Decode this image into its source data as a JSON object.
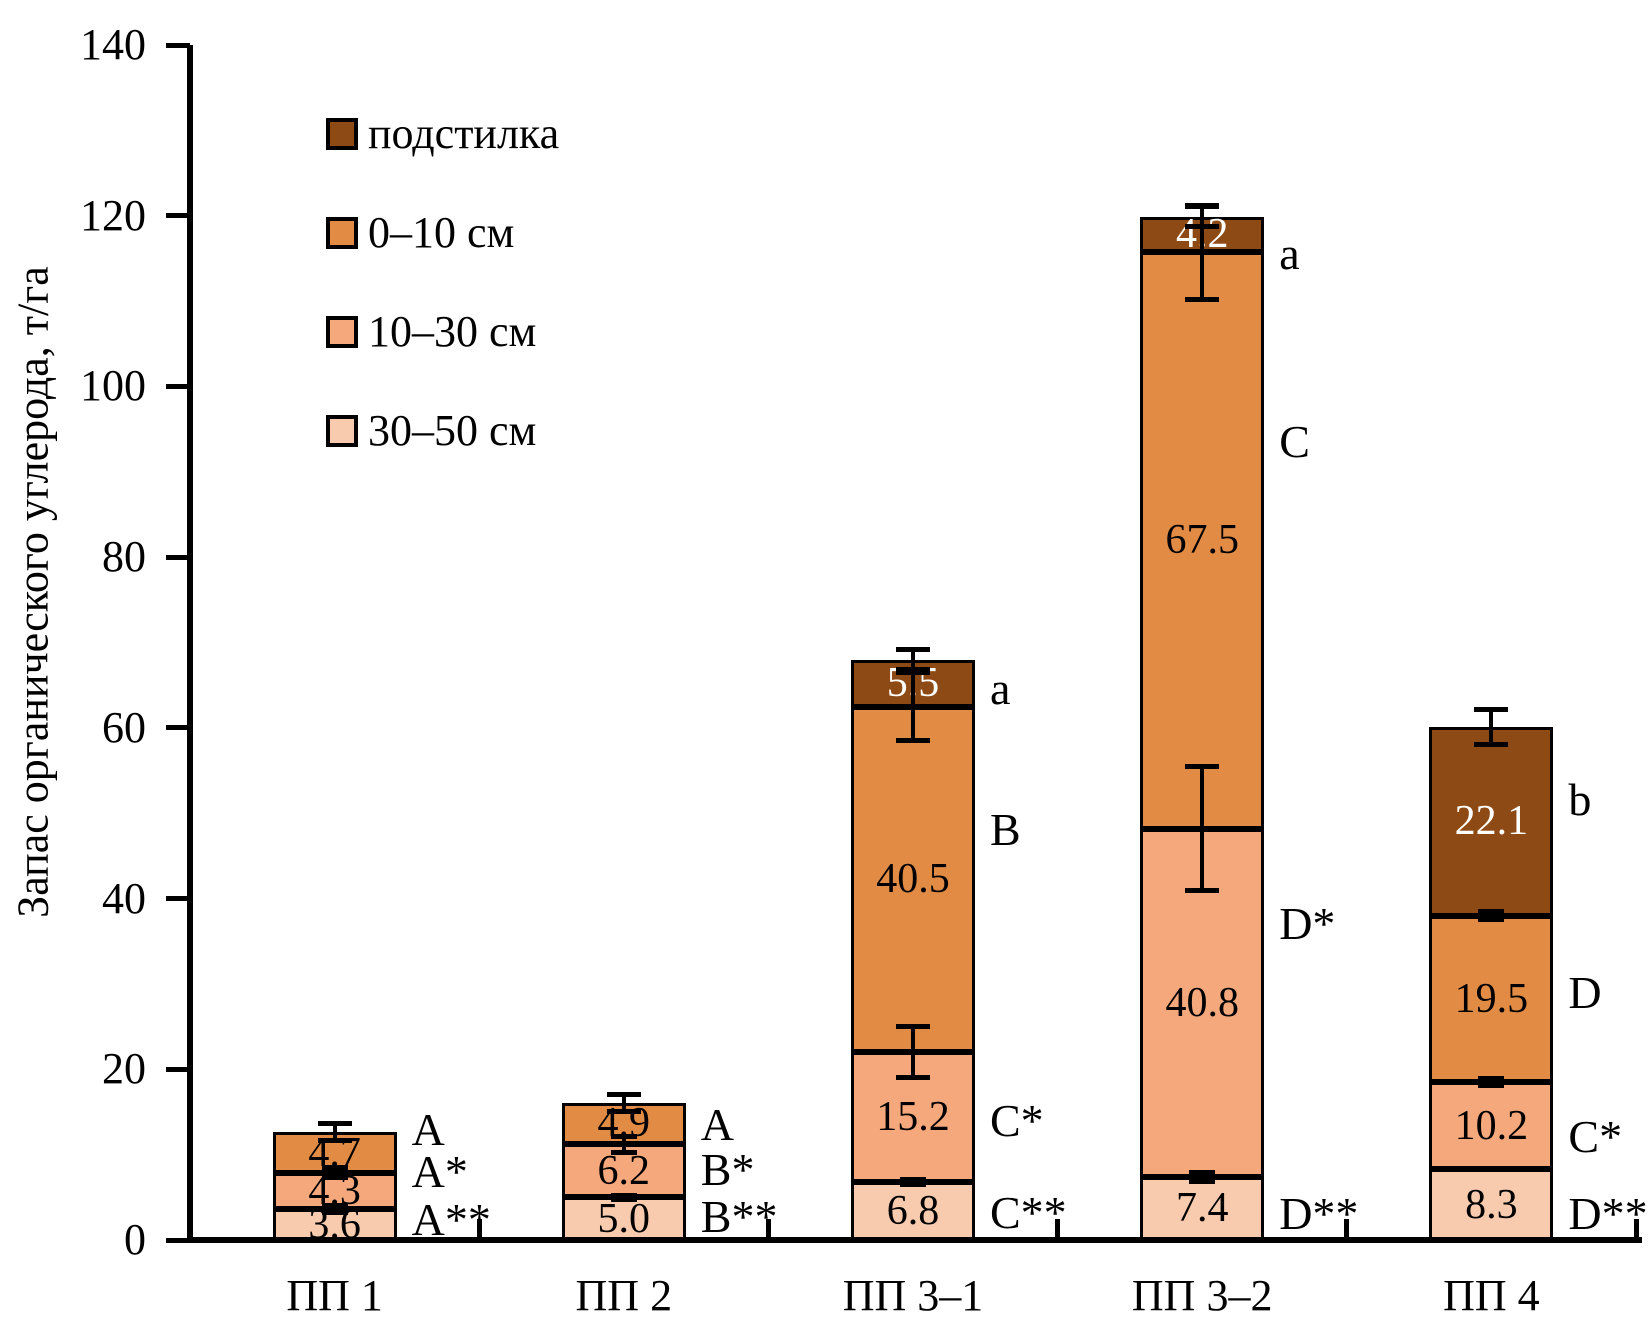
{
  "chart_data": {
    "type": "bar",
    "stacked": true,
    "title": "",
    "xlabel": "",
    "ylabel": "Запас органического углерода, т/га",
    "ylim": [
      0,
      140
    ],
    "yticks": [
      0,
      20,
      40,
      60,
      80,
      100,
      120,
      140
    ],
    "grid": false,
    "legend_position": "top-left",
    "categories": [
      "ПП 1",
      "ПП 2",
      "ПП 3–1",
      "ПП 3–2",
      "ПП 4"
    ],
    "series": [
      {
        "name": "30–50 см",
        "color": "#F8CBAE",
        "label_color": "#000000",
        "values": [
          3.6,
          5.0,
          6.8,
          7.4,
          8.3
        ]
      },
      {
        "name": "10–30 см",
        "color": "#F5A87C",
        "label_color": "#000000",
        "values": [
          4.3,
          6.2,
          15.2,
          40.8,
          10.2
        ]
      },
      {
        "name": "0–10 см",
        "color": "#E18B45",
        "label_color": "#000000",
        "values": [
          4.7,
          4.9,
          40.5,
          67.5,
          19.5
        ]
      },
      {
        "name": "подстилка",
        "color": "#8E4A14",
        "label_color": "#FFFFFF",
        "values": [
          null,
          null,
          5.5,
          4.2,
          22.1
        ]
      }
    ],
    "legend_items": [
      {
        "label": "подстилка",
        "color": "#8E4A14"
      },
      {
        "label": "0–10 см",
        "color": "#E18B45"
      },
      {
        "label": "10–30 см",
        "color": "#F5A87C"
      },
      {
        "label": "30–50 см",
        "color": "#F8CBAE"
      }
    ],
    "totals": [
      12.6,
      16.1,
      68.0,
      119.9,
      60.1
    ],
    "error_bars": [
      [
        {
          "at": 3.6,
          "pm": 0.4
        },
        {
          "at": 7.9,
          "pm": 0.6
        },
        {
          "at": 12.6,
          "pm": 1.0
        }
      ],
      [
        {
          "at": 5.0,
          "pm": 0.2
        },
        {
          "at": 11.2,
          "pm": 0.9
        },
        {
          "at": 16.1,
          "pm": 1.0
        }
      ],
      [
        {
          "at": 6.8,
          "pm": 0.3
        },
        {
          "at": 22.0,
          "pm": 3.0
        },
        {
          "at": 62.5,
          "pm": 4.0
        },
        {
          "at": 68.0,
          "pm": 1.2
        }
      ],
      [
        {
          "at": 7.4,
          "pm": 0.5
        },
        {
          "at": 48.2,
          "pm": 7.3
        },
        {
          "at": 115.7,
          "pm": 5.5
        },
        {
          "at": 119.9,
          "pm": 1.2
        }
      ],
      [
        {
          "at": 18.5,
          "pm": 0.4
        },
        {
          "at": 38.0,
          "pm": 0.5
        },
        {
          "at": 60.1,
          "pm": 2.0
        }
      ]
    ],
    "significance_labels": [
      [
        {
          "text": "A",
          "at": 12.9
        },
        {
          "text": "A*",
          "at": 8.0
        },
        {
          "text": "A**",
          "at": 2.4
        }
      ],
      [
        {
          "text": "A",
          "at": 13.5
        },
        {
          "text": "B*",
          "at": 8.2
        },
        {
          "text": "B**",
          "at": 2.7
        }
      ],
      [
        {
          "text": "a",
          "at": 64.6
        },
        {
          "text": "B",
          "at": 48.0
        },
        {
          "text": "C*",
          "at": 14.0
        },
        {
          "text": "C**",
          "at": 3.2
        }
      ],
      [
        {
          "text": "a",
          "at": 115.5
        },
        {
          "text": "C",
          "at": 93.5
        },
        {
          "text": "D*",
          "at": 37.0
        },
        {
          "text": "D**",
          "at": 3.0
        }
      ],
      [
        {
          "text": "b",
          "at": 51.5
        },
        {
          "text": "D",
          "at": 28.9
        },
        {
          "text": "C*",
          "at": 12.1
        },
        {
          "text": "D**",
          "at": 3.0
        }
      ]
    ]
  }
}
